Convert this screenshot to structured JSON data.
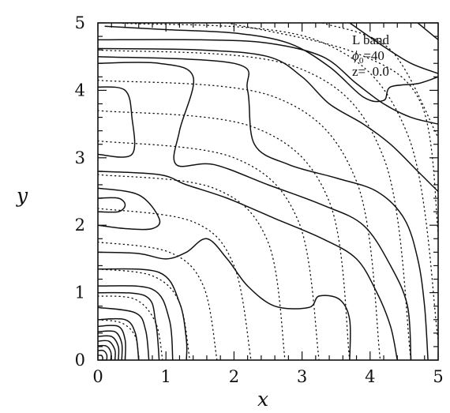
{
  "chart_data": {
    "type": "contour",
    "xlabel": "x",
    "ylabel": "y",
    "xlim": [
      0,
      5
    ],
    "ylim": [
      0,
      5
    ],
    "xticks": [
      "0",
      "1",
      "2",
      "3",
      "4",
      "5"
    ],
    "yticks": [
      "0",
      "1",
      "2",
      "3",
      "4",
      "5"
    ],
    "annotation": {
      "line1": "L band",
      "line2_symbol": "ϕ",
      "line2_subscript": "0",
      "line2_value": "=40",
      "line3": "z=  0.0"
    },
    "solid_contours": [
      [
        [
          0,
          0.5
        ],
        [
          0.3,
          0.5
        ],
        [
          0.4,
          0.3
        ],
        [
          0.4,
          0
        ]
      ],
      [
        [
          0,
          0.42
        ],
        [
          0.25,
          0.42
        ],
        [
          0.35,
          0.25
        ],
        [
          0.35,
          0
        ]
      ],
      [
        [
          0,
          0.35
        ],
        [
          0.2,
          0.35
        ],
        [
          0.3,
          0.2
        ],
        [
          0.3,
          0
        ]
      ],
      [
        [
          0,
          0.28
        ],
        [
          0.16,
          0.28
        ],
        [
          0.25,
          0.15
        ],
        [
          0.25,
          0
        ]
      ],
      [
        [
          0,
          0.21
        ],
        [
          0.12,
          0.21
        ],
        [
          0.19,
          0.12
        ],
        [
          0.19,
          0
        ]
      ],
      [
        [
          0,
          0.14
        ],
        [
          0.08,
          0.14
        ],
        [
          0.13,
          0.08
        ],
        [
          0.13,
          0
        ]
      ],
      [
        [
          0,
          0.07
        ],
        [
          0.05,
          0.07
        ],
        [
          0.07,
          0.04
        ],
        [
          0.07,
          0
        ]
      ],
      [
        [
          0,
          0.6
        ],
        [
          0.4,
          0.6
        ],
        [
          0.55,
          0.4
        ],
        [
          0.6,
          0
        ]
      ],
      [
        [
          0,
          0.78
        ],
        [
          0.55,
          0.7
        ],
        [
          0.7,
          0.45
        ],
        [
          0.75,
          0
        ]
      ],
      [
        [
          0,
          1.0
        ],
        [
          0.7,
          0.95
        ],
        [
          0.85,
          0.55
        ],
        [
          0.9,
          0
        ]
      ],
      [
        [
          0,
          1.1
        ],
        [
          0.8,
          1.05
        ],
        [
          1.05,
          0.6
        ],
        [
          1.1,
          0
        ]
      ],
      [
        [
          0,
          1.35
        ],
        [
          0.9,
          1.3
        ],
        [
          1.2,
          0.85
        ],
        [
          1.3,
          0.3
        ],
        [
          1.3,
          0
        ]
      ],
      [
        [
          0,
          1.6
        ],
        [
          0.6,
          1.58
        ],
        [
          1.0,
          1.5
        ],
        [
          1.3,
          1.6
        ],
        [
          1.6,
          1.8
        ],
        [
          1.9,
          1.5
        ],
        [
          2.2,
          1.1
        ],
        [
          2.6,
          0.8
        ],
        [
          3.1,
          0.78
        ],
        [
          3.25,
          0.95
        ],
        [
          3.55,
          0.9
        ],
        [
          3.7,
          0.6
        ],
        [
          3.7,
          0
        ]
      ],
      [
        [
          0,
          2.4
        ],
        [
          0.3,
          2.4
        ],
        [
          0.4,
          2.3
        ],
        [
          0.3,
          2.2
        ],
        [
          0,
          2.2
        ]
      ],
      [
        [
          0,
          2.55
        ],
        [
          0.6,
          2.45
        ],
        [
          0.9,
          2.1
        ],
        [
          0.8,
          1.95
        ],
        [
          0.4,
          1.95
        ],
        [
          0,
          2.0
        ]
      ],
      [
        [
          0,
          2.8
        ],
        [
          0.9,
          2.75
        ],
        [
          1.3,
          2.6
        ],
        [
          1.9,
          2.4
        ],
        [
          2.6,
          2.1
        ],
        [
          3.3,
          1.8
        ],
        [
          3.8,
          1.5
        ],
        [
          4.1,
          1.0
        ],
        [
          4.3,
          0.5
        ],
        [
          4.4,
          0
        ]
      ],
      [
        [
          0,
          3.05
        ],
        [
          0.5,
          3.05
        ],
        [
          0.5,
          3.6
        ],
        [
          0.4,
          4.0
        ],
        [
          0,
          4.05
        ]
      ],
      [
        [
          0,
          4.4
        ],
        [
          0.9,
          4.4
        ],
        [
          1.4,
          4.2
        ],
        [
          1.2,
          3.4
        ],
        [
          1.15,
          2.9
        ],
        [
          1.7,
          2.9
        ],
        [
          2.5,
          2.6
        ],
        [
          3.3,
          2.3
        ],
        [
          3.9,
          2.0
        ],
        [
          4.3,
          1.4
        ],
        [
          4.55,
          0.8
        ],
        [
          4.6,
          0
        ]
      ],
      [
        [
          0,
          4.5
        ],
        [
          2.0,
          4.4
        ],
        [
          2.2,
          4.0
        ],
        [
          2.3,
          3.2
        ],
        [
          2.8,
          2.9
        ],
        [
          3.5,
          2.7
        ],
        [
          4.1,
          2.5
        ],
        [
          4.5,
          2.1
        ],
        [
          4.7,
          1.5
        ],
        [
          4.8,
          0.8
        ],
        [
          4.85,
          0
        ]
      ],
      [
        [
          0,
          4.62
        ],
        [
          1.5,
          4.6
        ],
        [
          2.5,
          4.5
        ],
        [
          3.0,
          4.2
        ],
        [
          3.4,
          3.8
        ],
        [
          3.9,
          3.5
        ],
        [
          4.3,
          3.2
        ],
        [
          4.7,
          2.8
        ],
        [
          4.9,
          2.6
        ],
        [
          5,
          2.5
        ]
      ],
      [
        [
          0,
          4.75
        ],
        [
          1.5,
          4.75
        ],
        [
          2.5,
          4.7
        ],
        [
          3.3,
          4.5
        ],
        [
          3.8,
          4.1
        ],
        [
          4.2,
          3.8
        ],
        [
          4.6,
          3.6
        ],
        [
          5,
          3.5
        ]
      ],
      [
        [
          0.1,
          4.95
        ],
        [
          1.0,
          4.9
        ],
        [
          2.0,
          4.85
        ],
        [
          2.8,
          4.7
        ],
        [
          3.4,
          4.35
        ],
        [
          3.9,
          3.9
        ],
        [
          4.2,
          3.85
        ],
        [
          4.3,
          4.05
        ],
        [
          4.7,
          4.1
        ],
        [
          5,
          4.2
        ]
      ],
      [
        [
          3.7,
          5
        ],
        [
          4.2,
          4.65
        ],
        [
          4.6,
          4.4
        ],
        [
          5,
          4.25
        ]
      ],
      [
        [
          4.7,
          5
        ],
        [
          5,
          4.75
        ]
      ]
    ],
    "dotted_contours": [
      [
        [
          0,
          0.6
        ],
        [
          0.35,
          0.55
        ],
        [
          0.55,
          0.35
        ],
        [
          0.6,
          0
        ]
      ],
      [
        [
          0,
          0.95
        ],
        [
          0.55,
          0.9
        ],
        [
          0.85,
          0.55
        ],
        [
          0.95,
          0
        ]
      ],
      [
        [
          0,
          1.35
        ],
        [
          0.8,
          1.25
        ],
        [
          1.2,
          0.85
        ],
        [
          1.35,
          0
        ]
      ],
      [
        [
          0,
          1.75
        ],
        [
          1.05,
          1.6
        ],
        [
          1.55,
          1.1
        ],
        [
          1.75,
          0
        ]
      ],
      [
        [
          0,
          2.25
        ],
        [
          1.4,
          2.05
        ],
        [
          2.0,
          1.4
        ],
        [
          2.25,
          0
        ]
      ],
      [
        [
          0,
          2.75
        ],
        [
          1.7,
          2.55
        ],
        [
          2.5,
          1.75
        ],
        [
          2.75,
          0
        ]
      ],
      [
        [
          0,
          3.25
        ],
        [
          2.0,
          3.0
        ],
        [
          2.95,
          2.05
        ],
        [
          3.25,
          0
        ]
      ],
      [
        [
          0,
          3.7
        ],
        [
          2.3,
          3.45
        ],
        [
          3.4,
          2.35
        ],
        [
          3.7,
          0
        ]
      ],
      [
        [
          0,
          4.15
        ],
        [
          2.6,
          3.9
        ],
        [
          3.8,
          2.65
        ],
        [
          4.15,
          0
        ]
      ],
      [
        [
          0,
          4.6
        ],
        [
          2.9,
          4.35
        ],
        [
          4.2,
          3.0
        ],
        [
          4.6,
          0
        ]
      ],
      [
        [
          0.3,
          5
        ],
        [
          3.2,
          4.75
        ],
        [
          4.55,
          3.35
        ],
        [
          5,
          0.3
        ]
      ],
      [
        [
          1.9,
          5
        ],
        [
          3.8,
          4.55
        ],
        [
          4.75,
          3.8
        ],
        [
          5,
          1.9
        ]
      ],
      [
        [
          3.3,
          5
        ],
        [
          4.3,
          4.6
        ],
        [
          5,
          3.3
        ]
      ]
    ]
  }
}
